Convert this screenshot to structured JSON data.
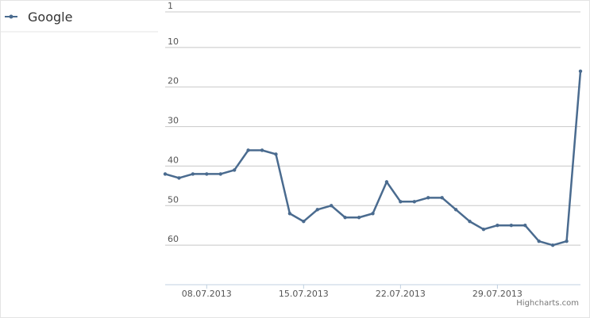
{
  "chart_data": {
    "type": "line",
    "x": [
      "05.07.2013",
      "06.07.2013",
      "07.07.2013",
      "08.07.2013",
      "09.07.2013",
      "10.07.2013",
      "11.07.2013",
      "12.07.2013",
      "13.07.2013",
      "14.07.2013",
      "15.07.2013",
      "16.07.2013",
      "17.07.2013",
      "18.07.2013",
      "19.07.2013",
      "20.07.2013",
      "21.07.2013",
      "22.07.2013",
      "23.07.2013",
      "24.07.2013",
      "25.07.2013",
      "26.07.2013",
      "27.07.2013",
      "28.07.2013",
      "29.07.2013",
      "30.07.2013",
      "31.07.2013",
      "01.08.2013",
      "02.08.2013",
      "03.08.2013",
      "04.08.2013"
    ],
    "series": [
      {
        "name": "Google",
        "color": "#4a6b8f",
        "values": [
          42,
          43,
          42,
          42,
          42,
          41,
          36,
          36,
          37,
          52,
          54,
          51,
          50,
          53,
          53,
          52,
          44,
          49,
          49,
          48,
          48,
          51,
          54,
          56,
          55,
          55,
          55,
          59,
          60,
          59,
          16
        ]
      }
    ],
    "xticks": [
      "08.07.2013",
      "15.07.2013",
      "22.07.2013",
      "29.07.2013"
    ],
    "ylim": [
      1,
      70
    ],
    "yticks": [
      1,
      10,
      20,
      30,
      40,
      50,
      60
    ],
    "y_reversed": true,
    "grid": true,
    "credit": "Highcharts.com"
  }
}
